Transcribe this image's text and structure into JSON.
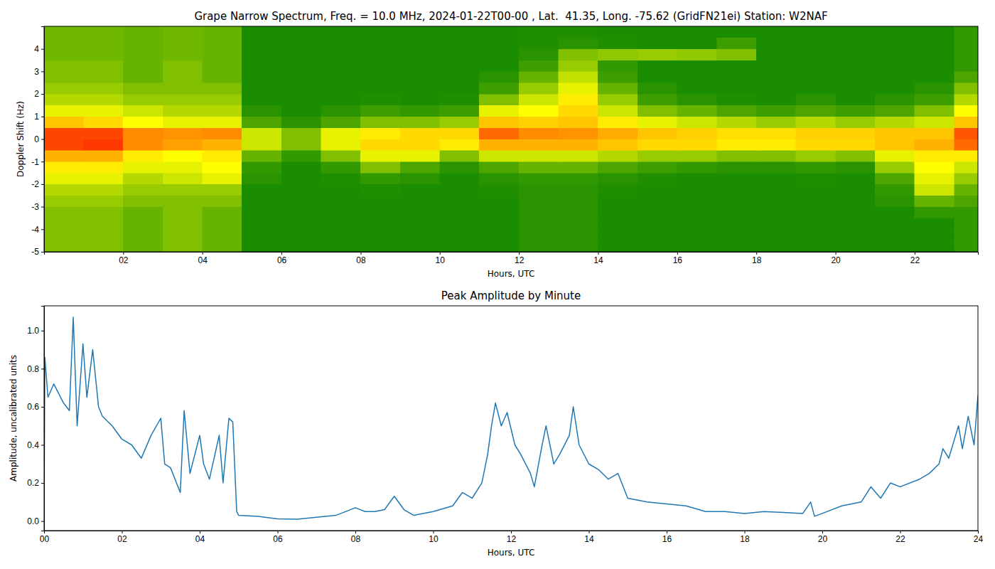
{
  "chart_data": [
    {
      "type": "heatmap",
      "title": "Grape Narrow Spectrum, Freq. = 10.0 MHz, 2024-01-22T00-00 , Lat.  41.35, Long. -75.62 (GridFN21ei) Station: W2NAF",
      "x_label": "Hours, UTC",
      "y_label": "Doppler Shift (Hz)",
      "xlim": [
        0,
        23.6
      ],
      "ylim": [
        -5,
        5
      ],
      "xticks": [
        {
          "value": 2,
          "label": "02"
        },
        {
          "value": 4,
          "label": "04"
        },
        {
          "value": 6,
          "label": "06"
        },
        {
          "value": 8,
          "label": "08"
        },
        {
          "value": 10,
          "label": "10"
        },
        {
          "value": 12,
          "label": "12"
        },
        {
          "value": 14,
          "label": "14"
        },
        {
          "value": 16,
          "label": "16"
        },
        {
          "value": 18,
          "label": "18"
        },
        {
          "value": 20,
          "label": "20"
        },
        {
          "value": 22,
          "label": "22"
        }
      ],
      "yticks": [
        -5,
        -4,
        -3,
        -2,
        -1,
        0,
        1,
        2,
        3,
        4
      ],
      "zlim": [
        0,
        1
      ],
      "x_bins": [
        0,
        1,
        2,
        3,
        4,
        5,
        6,
        7,
        8,
        9,
        10,
        11,
        12,
        13,
        14,
        15,
        16,
        17,
        18,
        19,
        20,
        21,
        22,
        23,
        24
      ],
      "y_bins": [
        -5,
        -4.5,
        -4,
        -3.5,
        -3,
        -2.5,
        -2,
        -1.5,
        -1,
        -0.5,
        0,
        0.5,
        1,
        1.5,
        2,
        2.5,
        3,
        3.5,
        4,
        4.5,
        5
      ],
      "values": [
        [
          0.25,
          0.25,
          0.2,
          0.25,
          0.2,
          0.05,
          0.05,
          0.05,
          0.05,
          0.05,
          0.05,
          0.05,
          0.08,
          0.08,
          0.05,
          0.05,
          0.05,
          0.05,
          0.05,
          0.05,
          0.05,
          0.05,
          0.05,
          0.1
        ],
        [
          0.25,
          0.25,
          0.2,
          0.25,
          0.2,
          0.05,
          0.05,
          0.05,
          0.05,
          0.05,
          0.05,
          0.05,
          0.08,
          0.08,
          0.05,
          0.05,
          0.05,
          0.05,
          0.05,
          0.05,
          0.05,
          0.05,
          0.05,
          0.1
        ],
        [
          0.25,
          0.25,
          0.2,
          0.25,
          0.2,
          0.05,
          0.05,
          0.05,
          0.05,
          0.05,
          0.05,
          0.05,
          0.08,
          0.08,
          0.05,
          0.05,
          0.05,
          0.05,
          0.05,
          0.05,
          0.05,
          0.05,
          0.05,
          0.1
        ],
        [
          0.25,
          0.25,
          0.2,
          0.25,
          0.2,
          0.05,
          0.05,
          0.05,
          0.05,
          0.05,
          0.05,
          0.05,
          0.08,
          0.08,
          0.05,
          0.05,
          0.05,
          0.05,
          0.05,
          0.05,
          0.05,
          0.05,
          0.1,
          0.1
        ],
        [
          0.3,
          0.3,
          0.25,
          0.25,
          0.25,
          0.05,
          0.05,
          0.05,
          0.05,
          0.05,
          0.05,
          0.05,
          0.08,
          0.08,
          0.05,
          0.05,
          0.05,
          0.05,
          0.05,
          0.05,
          0.05,
          0.08,
          0.2,
          0.15
        ],
        [
          0.35,
          0.35,
          0.3,
          0.3,
          0.3,
          0.05,
          0.05,
          0.05,
          0.06,
          0.05,
          0.05,
          0.06,
          0.08,
          0.08,
          0.06,
          0.05,
          0.05,
          0.05,
          0.05,
          0.05,
          0.05,
          0.1,
          0.4,
          0.2
        ],
        [
          0.45,
          0.45,
          0.35,
          0.4,
          0.45,
          0.08,
          0.05,
          0.06,
          0.1,
          0.08,
          0.05,
          0.08,
          0.1,
          0.1,
          0.08,
          0.06,
          0.05,
          0.05,
          0.05,
          0.06,
          0.05,
          0.15,
          0.45,
          0.3
        ],
        [
          0.55,
          0.55,
          0.45,
          0.45,
          0.5,
          0.1,
          0.05,
          0.1,
          0.25,
          0.15,
          0.08,
          0.15,
          0.2,
          0.2,
          0.15,
          0.12,
          0.1,
          0.08,
          0.08,
          0.1,
          0.08,
          0.3,
          0.5,
          0.4
        ],
        [
          0.7,
          0.7,
          0.55,
          0.5,
          0.55,
          0.2,
          0.1,
          0.25,
          0.45,
          0.45,
          0.25,
          0.4,
          0.4,
          0.4,
          0.35,
          0.3,
          0.3,
          0.25,
          0.25,
          0.3,
          0.25,
          0.45,
          0.55,
          0.55
        ],
        [
          0.9,
          0.92,
          0.8,
          0.75,
          0.7,
          0.4,
          0.25,
          0.45,
          0.6,
          0.6,
          0.55,
          0.7,
          0.7,
          0.7,
          0.65,
          0.6,
          0.6,
          0.55,
          0.55,
          0.6,
          0.6,
          0.65,
          0.7,
          0.85
        ],
        [
          0.9,
          0.9,
          0.8,
          0.78,
          0.8,
          0.4,
          0.25,
          0.45,
          0.55,
          0.6,
          0.6,
          0.85,
          0.8,
          0.78,
          0.72,
          0.65,
          0.62,
          0.58,
          0.58,
          0.62,
          0.62,
          0.65,
          0.65,
          0.88
        ],
        [
          0.65,
          0.6,
          0.5,
          0.45,
          0.45,
          0.15,
          0.08,
          0.15,
          0.25,
          0.25,
          0.3,
          0.65,
          0.62,
          0.65,
          0.55,
          0.45,
          0.4,
          0.35,
          0.3,
          0.35,
          0.3,
          0.35,
          0.4,
          0.65
        ],
        [
          0.45,
          0.45,
          0.4,
          0.35,
          0.35,
          0.08,
          0.05,
          0.08,
          0.12,
          0.1,
          0.12,
          0.45,
          0.5,
          0.6,
          0.4,
          0.25,
          0.2,
          0.15,
          0.12,
          0.15,
          0.12,
          0.15,
          0.25,
          0.5
        ],
        [
          0.35,
          0.35,
          0.3,
          0.3,
          0.3,
          0.05,
          0.05,
          0.05,
          0.06,
          0.05,
          0.06,
          0.25,
          0.4,
          0.55,
          0.3,
          0.12,
          0.08,
          0.06,
          0.05,
          0.08,
          0.05,
          0.08,
          0.12,
          0.35
        ],
        [
          0.3,
          0.3,
          0.25,
          0.25,
          0.25,
          0.05,
          0.05,
          0.05,
          0.05,
          0.05,
          0.05,
          0.12,
          0.3,
          0.45,
          0.2,
          0.08,
          0.05,
          0.05,
          0.05,
          0.05,
          0.05,
          0.05,
          0.08,
          0.25
        ],
        [
          0.25,
          0.25,
          0.2,
          0.25,
          0.2,
          0.05,
          0.05,
          0.05,
          0.05,
          0.05,
          0.05,
          0.08,
          0.2,
          0.38,
          0.12,
          0.05,
          0.05,
          0.05,
          0.05,
          0.05,
          0.05,
          0.05,
          0.05,
          0.15
        ],
        [
          0.25,
          0.25,
          0.2,
          0.25,
          0.2,
          0.05,
          0.05,
          0.05,
          0.05,
          0.05,
          0.05,
          0.05,
          0.12,
          0.3,
          0.1,
          0.05,
          0.05,
          0.05,
          0.05,
          0.05,
          0.05,
          0.05,
          0.05,
          0.1
        ],
        [
          0.22,
          0.22,
          0.2,
          0.22,
          0.2,
          0.05,
          0.05,
          0.05,
          0.05,
          0.05,
          0.05,
          0.05,
          0.08,
          0.25,
          0.28,
          0.3,
          0.28,
          0.25,
          0.05,
          0.05,
          0.05,
          0.05,
          0.05,
          0.1
        ],
        [
          0.22,
          0.22,
          0.2,
          0.22,
          0.2,
          0.05,
          0.05,
          0.05,
          0.05,
          0.05,
          0.05,
          0.05,
          0.06,
          0.08,
          0.06,
          0.05,
          0.05,
          0.12,
          0.05,
          0.05,
          0.05,
          0.05,
          0.05,
          0.1
        ],
        [
          0.22,
          0.22,
          0.2,
          0.22,
          0.2,
          0.05,
          0.05,
          0.05,
          0.05,
          0.05,
          0.05,
          0.05,
          0.06,
          0.06,
          0.05,
          0.05,
          0.05,
          0.05,
          0.05,
          0.05,
          0.05,
          0.05,
          0.05,
          0.1
        ]
      ]
    },
    {
      "type": "line",
      "title": "Peak Amplitude by Minute",
      "x_label": "Hours, UTC",
      "y_label": "Amplitude, uncalibrated units",
      "color": "#1f77b4",
      "xlim": [
        0,
        24
      ],
      "ylim": [
        -0.05,
        1.13
      ],
      "xticks": [
        {
          "value": 0,
          "label": "00"
        },
        {
          "value": 2,
          "label": "02"
        },
        {
          "value": 4,
          "label": "04"
        },
        {
          "value": 6,
          "label": "06"
        },
        {
          "value": 8,
          "label": "08"
        },
        {
          "value": 10,
          "label": "10"
        },
        {
          "value": 12,
          "label": "12"
        },
        {
          "value": 14,
          "label": "14"
        },
        {
          "value": 16,
          "label": "16"
        },
        {
          "value": 18,
          "label": "18"
        },
        {
          "value": 20,
          "label": "20"
        },
        {
          "value": 22,
          "label": "22"
        },
        {
          "value": 24,
          "label": "24"
        }
      ],
      "yticks": [
        {
          "value": 0,
          "label": "0.0"
        },
        0.2,
        0.4,
        0.6,
        0.8,
        {
          "value": 1,
          "label": "1.0"
        }
      ],
      "x": [
        0,
        0.02,
        0.1,
        0.25,
        0.5,
        0.65,
        0.75,
        0.85,
        1.0,
        1.1,
        1.25,
        1.4,
        1.5,
        1.75,
        2.0,
        2.25,
        2.5,
        2.75,
        3.0,
        3.1,
        3.25,
        3.5,
        3.6,
        3.75,
        4.0,
        4.1,
        4.25,
        4.5,
        4.6,
        4.75,
        4.85,
        4.95,
        5.0,
        5.5,
        6.0,
        6.5,
        7.0,
        7.5,
        8.0,
        8.25,
        8.5,
        8.75,
        9.0,
        9.25,
        9.5,
        10.0,
        10.5,
        10.75,
        11.0,
        11.25,
        11.4,
        11.5,
        11.6,
        11.75,
        11.9,
        12.1,
        12.25,
        12.5,
        12.6,
        12.8,
        12.9,
        13.1,
        13.25,
        13.5,
        13.6,
        13.75,
        14.0,
        14.25,
        14.5,
        14.75,
        15.0,
        15.5,
        16.0,
        16.5,
        17.0,
        17.5,
        18.0,
        18.5,
        19.0,
        19.5,
        19.7,
        19.8,
        20.0,
        20.5,
        21.0,
        21.25,
        21.5,
        21.75,
        22.0,
        22.5,
        22.75,
        23.0,
        23.1,
        23.25,
        23.5,
        23.6,
        23.75,
        23.9,
        24.0
      ],
      "values": [
        0.0,
        0.86,
        0.65,
        0.72,
        0.62,
        0.58,
        1.07,
        0.5,
        0.93,
        0.65,
        0.9,
        0.6,
        0.55,
        0.5,
        0.43,
        0.4,
        0.33,
        0.45,
        0.54,
        0.3,
        0.28,
        0.15,
        0.58,
        0.25,
        0.45,
        0.3,
        0.22,
        0.45,
        0.2,
        0.54,
        0.52,
        0.05,
        0.03,
        0.025,
        0.012,
        0.01,
        0.02,
        0.03,
        0.07,
        0.05,
        0.05,
        0.06,
        0.13,
        0.06,
        0.03,
        0.05,
        0.08,
        0.15,
        0.12,
        0.2,
        0.35,
        0.5,
        0.62,
        0.5,
        0.57,
        0.4,
        0.35,
        0.25,
        0.18,
        0.4,
        0.5,
        0.3,
        0.35,
        0.45,
        0.6,
        0.4,
        0.3,
        0.27,
        0.22,
        0.25,
        0.12,
        0.1,
        0.09,
        0.08,
        0.05,
        0.05,
        0.04,
        0.05,
        0.045,
        0.04,
        0.1,
        0.025,
        0.04,
        0.08,
        0.1,
        0.18,
        0.12,
        0.2,
        0.18,
        0.22,
        0.25,
        0.3,
        0.38,
        0.33,
        0.5,
        0.38,
        0.55,
        0.4,
        0.66
      ]
    }
  ]
}
